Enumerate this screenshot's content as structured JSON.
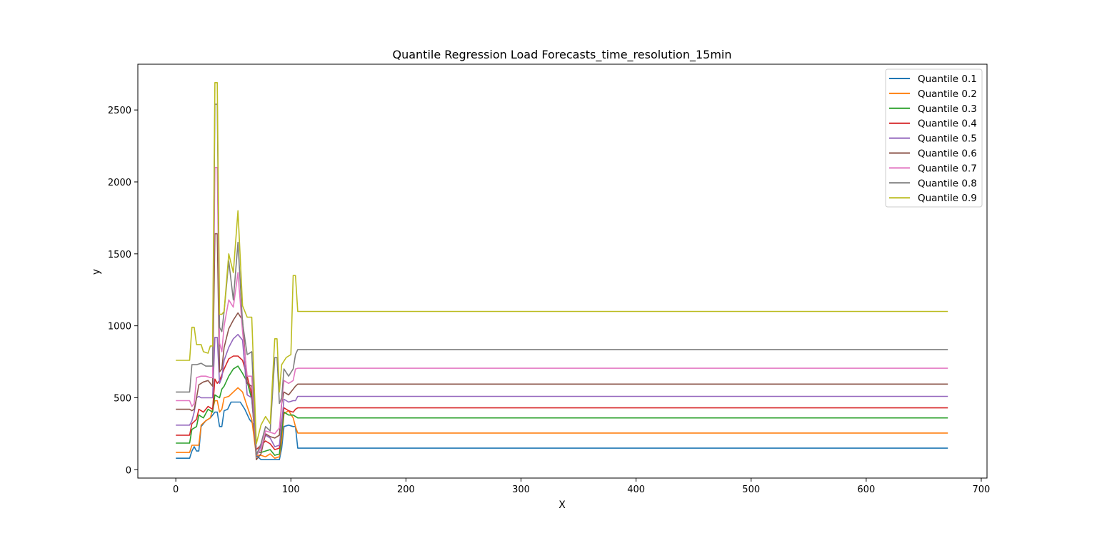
{
  "chart_data": {
    "type": "line",
    "title": "Quantile Regression Load Forecasts_time_resolution_15min",
    "xlabel": "X",
    "ylabel": "y",
    "xlim": [
      -33,
      705
    ],
    "ylim": [
      -58,
      2818
    ],
    "xticks": [
      0,
      100,
      200,
      300,
      400,
      500,
      600,
      700
    ],
    "yticks": [
      0,
      500,
      1000,
      1500,
      2000,
      2500
    ],
    "grid": false,
    "legend_position": "upper right",
    "series": [
      {
        "name": "Quantile 0.1",
        "color": "#1f77b4",
        "points": [
          [
            0,
            80
          ],
          [
            12,
            80
          ],
          [
            14,
            130
          ],
          [
            16,
            160
          ],
          [
            18,
            130
          ],
          [
            20,
            130
          ],
          [
            22,
            300
          ],
          [
            26,
            340
          ],
          [
            30,
            360
          ],
          [
            34,
            400
          ],
          [
            36,
            400
          ],
          [
            38,
            300
          ],
          [
            40,
            300
          ],
          [
            42,
            410
          ],
          [
            45,
            420
          ],
          [
            48,
            470
          ],
          [
            52,
            470
          ],
          [
            56,
            470
          ],
          [
            60,
            420
          ],
          [
            64,
            350
          ],
          [
            67,
            320
          ],
          [
            70,
            100
          ],
          [
            74,
            70
          ],
          [
            78,
            70
          ],
          [
            82,
            70
          ],
          [
            86,
            70
          ],
          [
            90,
            70
          ],
          [
            92,
            150
          ],
          [
            94,
            300
          ],
          [
            98,
            310
          ],
          [
            102,
            300
          ],
          [
            104,
            300
          ],
          [
            106,
            150
          ],
          [
            300,
            150
          ],
          [
            671,
            150
          ]
        ]
      },
      {
        "name": "Quantile 0.2",
        "color": "#ff7f0e",
        "points": [
          [
            0,
            120
          ],
          [
            12,
            120
          ],
          [
            14,
            170
          ],
          [
            18,
            170
          ],
          [
            20,
            170
          ],
          [
            22,
            310
          ],
          [
            26,
            340
          ],
          [
            30,
            360
          ],
          [
            34,
            480
          ],
          [
            36,
            480
          ],
          [
            38,
            400
          ],
          [
            40,
            420
          ],
          [
            42,
            500
          ],
          [
            46,
            510
          ],
          [
            50,
            540
          ],
          [
            54,
            570
          ],
          [
            58,
            540
          ],
          [
            62,
            440
          ],
          [
            66,
            350
          ],
          [
            70,
            100
          ],
          [
            74,
            100
          ],
          [
            78,
            90
          ],
          [
            82,
            110
          ],
          [
            86,
            80
          ],
          [
            90,
            90
          ],
          [
            92,
            200
          ],
          [
            94,
            390
          ],
          [
            98,
            410
          ],
          [
            102,
            360
          ],
          [
            104,
            300
          ],
          [
            106,
            255
          ],
          [
            300,
            255
          ],
          [
            671,
            255
          ]
        ]
      },
      {
        "name": "Quantile 0.3",
        "color": "#2ca02c",
        "points": [
          [
            0,
            185
          ],
          [
            12,
            185
          ],
          [
            14,
            280
          ],
          [
            18,
            300
          ],
          [
            20,
            380
          ],
          [
            24,
            360
          ],
          [
            28,
            420
          ],
          [
            32,
            400
          ],
          [
            34,
            520
          ],
          [
            36,
            510
          ],
          [
            38,
            500
          ],
          [
            40,
            560
          ],
          [
            42,
            580
          ],
          [
            46,
            650
          ],
          [
            50,
            700
          ],
          [
            54,
            720
          ],
          [
            58,
            670
          ],
          [
            62,
            610
          ],
          [
            66,
            490
          ],
          [
            70,
            120
          ],
          [
            74,
            120
          ],
          [
            78,
            130
          ],
          [
            82,
            140
          ],
          [
            86,
            100
          ],
          [
            90,
            110
          ],
          [
            92,
            260
          ],
          [
            94,
            400
          ],
          [
            98,
            380
          ],
          [
            102,
            380
          ],
          [
            106,
            360
          ],
          [
            300,
            360
          ],
          [
            671,
            360
          ]
        ]
      },
      {
        "name": "Quantile 0.4",
        "color": "#d62728",
        "points": [
          [
            0,
            240
          ],
          [
            12,
            240
          ],
          [
            14,
            320
          ],
          [
            18,
            350
          ],
          [
            20,
            420
          ],
          [
            24,
            400
          ],
          [
            28,
            440
          ],
          [
            32,
            420
          ],
          [
            34,
            630
          ],
          [
            36,
            600
          ],
          [
            38,
            620
          ],
          [
            40,
            660
          ],
          [
            42,
            700
          ],
          [
            46,
            770
          ],
          [
            50,
            790
          ],
          [
            54,
            790
          ],
          [
            58,
            760
          ],
          [
            62,
            650
          ],
          [
            66,
            520
          ],
          [
            70,
            140
          ],
          [
            74,
            170
          ],
          [
            78,
            200
          ],
          [
            82,
            180
          ],
          [
            86,
            140
          ],
          [
            90,
            150
          ],
          [
            92,
            320
          ],
          [
            94,
            430
          ],
          [
            98,
            410
          ],
          [
            102,
            400
          ],
          [
            104,
            420
          ],
          [
            106,
            430
          ],
          [
            300,
            430
          ],
          [
            671,
            430
          ]
        ]
      },
      {
        "name": "Quantile 0.5",
        "color": "#9467bd",
        "points": [
          [
            0,
            310
          ],
          [
            12,
            310
          ],
          [
            14,
            340
          ],
          [
            16,
            400
          ],
          [
            18,
            500
          ],
          [
            20,
            510
          ],
          [
            22,
            500
          ],
          [
            26,
            500
          ],
          [
            30,
            500
          ],
          [
            32,
            500
          ],
          [
            34,
            920
          ],
          [
            36,
            920
          ],
          [
            38,
            600
          ],
          [
            40,
            640
          ],
          [
            42,
            760
          ],
          [
            46,
            850
          ],
          [
            50,
            910
          ],
          [
            54,
            940
          ],
          [
            58,
            900
          ],
          [
            62,
            520
          ],
          [
            66,
            500
          ],
          [
            70,
            110
          ],
          [
            74,
            160
          ],
          [
            78,
            240
          ],
          [
            82,
            220
          ],
          [
            86,
            160
          ],
          [
            90,
            170
          ],
          [
            92,
            320
          ],
          [
            94,
            490
          ],
          [
            98,
            470
          ],
          [
            102,
            480
          ],
          [
            104,
            480
          ],
          [
            106,
            510
          ],
          [
            300,
            510
          ],
          [
            671,
            510
          ]
        ]
      },
      {
        "name": "Quantile 0.6",
        "color": "#8c564b",
        "points": [
          [
            0,
            420
          ],
          [
            12,
            420
          ],
          [
            14,
            410
          ],
          [
            16,
            420
          ],
          [
            18,
            500
          ],
          [
            20,
            590
          ],
          [
            24,
            610
          ],
          [
            28,
            620
          ],
          [
            32,
            580
          ],
          [
            34,
            1640
          ],
          [
            36,
            1640
          ],
          [
            38,
            680
          ],
          [
            40,
            700
          ],
          [
            42,
            850
          ],
          [
            46,
            980
          ],
          [
            50,
            1040
          ],
          [
            54,
            1090
          ],
          [
            58,
            1040
          ],
          [
            62,
            600
          ],
          [
            66,
            580
          ],
          [
            70,
            70
          ],
          [
            74,
            110
          ],
          [
            78,
            250
          ],
          [
            82,
            230
          ],
          [
            86,
            220
          ],
          [
            90,
            240
          ],
          [
            92,
            460
          ],
          [
            94,
            540
          ],
          [
            98,
            520
          ],
          [
            102,
            560
          ],
          [
            104,
            580
          ],
          [
            106,
            595
          ],
          [
            300,
            595
          ],
          [
            671,
            595
          ]
        ]
      },
      {
        "name": "Quantile 0.7",
        "color": "#e377c2",
        "points": [
          [
            0,
            480
          ],
          [
            12,
            480
          ],
          [
            14,
            440
          ],
          [
            16,
            460
          ],
          [
            18,
            640
          ],
          [
            22,
            650
          ],
          [
            26,
            650
          ],
          [
            30,
            640
          ],
          [
            32,
            640
          ],
          [
            34,
            2100
          ],
          [
            36,
            2100
          ],
          [
            38,
            880
          ],
          [
            40,
            820
          ],
          [
            42,
            1000
          ],
          [
            46,
            1180
          ],
          [
            50,
            1130
          ],
          [
            54,
            1370
          ],
          [
            58,
            960
          ],
          [
            62,
            650
          ],
          [
            66,
            650
          ],
          [
            70,
            100
          ],
          [
            74,
            140
          ],
          [
            78,
            270
          ],
          [
            82,
            260
          ],
          [
            86,
            250
          ],
          [
            90,
            290
          ],
          [
            92,
            470
          ],
          [
            94,
            620
          ],
          [
            98,
            600
          ],
          [
            102,
            620
          ],
          [
            104,
            700
          ],
          [
            106,
            705
          ],
          [
            300,
            705
          ],
          [
            671,
            705
          ]
        ]
      },
      {
        "name": "Quantile 0.8",
        "color": "#7f7f7f",
        "points": [
          [
            0,
            540
          ],
          [
            12,
            540
          ],
          [
            14,
            730
          ],
          [
            18,
            730
          ],
          [
            22,
            740
          ],
          [
            26,
            720
          ],
          [
            30,
            720
          ],
          [
            32,
            720
          ],
          [
            34,
            2540
          ],
          [
            36,
            2540
          ],
          [
            38,
            990
          ],
          [
            40,
            960
          ],
          [
            42,
            1100
          ],
          [
            46,
            1450
          ],
          [
            50,
            1180
          ],
          [
            54,
            1580
          ],
          [
            58,
            1020
          ],
          [
            62,
            800
          ],
          [
            66,
            820
          ],
          [
            70,
            100
          ],
          [
            74,
            180
          ],
          [
            78,
            300
          ],
          [
            82,
            270
          ],
          [
            86,
            780
          ],
          [
            88,
            780
          ],
          [
            90,
            460
          ],
          [
            92,
            500
          ],
          [
            94,
            700
          ],
          [
            98,
            650
          ],
          [
            102,
            700
          ],
          [
            104,
            800
          ],
          [
            106,
            835
          ],
          [
            300,
            835
          ],
          [
            671,
            835
          ]
        ]
      },
      {
        "name": "Quantile 0.9",
        "color": "#bcbd22",
        "points": [
          [
            0,
            760
          ],
          [
            12,
            760
          ],
          [
            14,
            990
          ],
          [
            16,
            990
          ],
          [
            18,
            870
          ],
          [
            22,
            870
          ],
          [
            24,
            820
          ],
          [
            28,
            810
          ],
          [
            30,
            860
          ],
          [
            32,
            860
          ],
          [
            34,
            2690
          ],
          [
            36,
            2690
          ],
          [
            38,
            1080
          ],
          [
            40,
            1080
          ],
          [
            42,
            1100
          ],
          [
            46,
            1500
          ],
          [
            50,
            1370
          ],
          [
            54,
            1800
          ],
          [
            58,
            1140
          ],
          [
            62,
            1060
          ],
          [
            66,
            1060
          ],
          [
            70,
            180
          ],
          [
            74,
            310
          ],
          [
            78,
            370
          ],
          [
            82,
            320
          ],
          [
            86,
            910
          ],
          [
            88,
            910
          ],
          [
            90,
            540
          ],
          [
            92,
            730
          ],
          [
            96,
            780
          ],
          [
            100,
            800
          ],
          [
            102,
            1350
          ],
          [
            104,
            1350
          ],
          [
            106,
            1100
          ],
          [
            300,
            1100
          ],
          [
            671,
            1100
          ]
        ]
      }
    ]
  }
}
